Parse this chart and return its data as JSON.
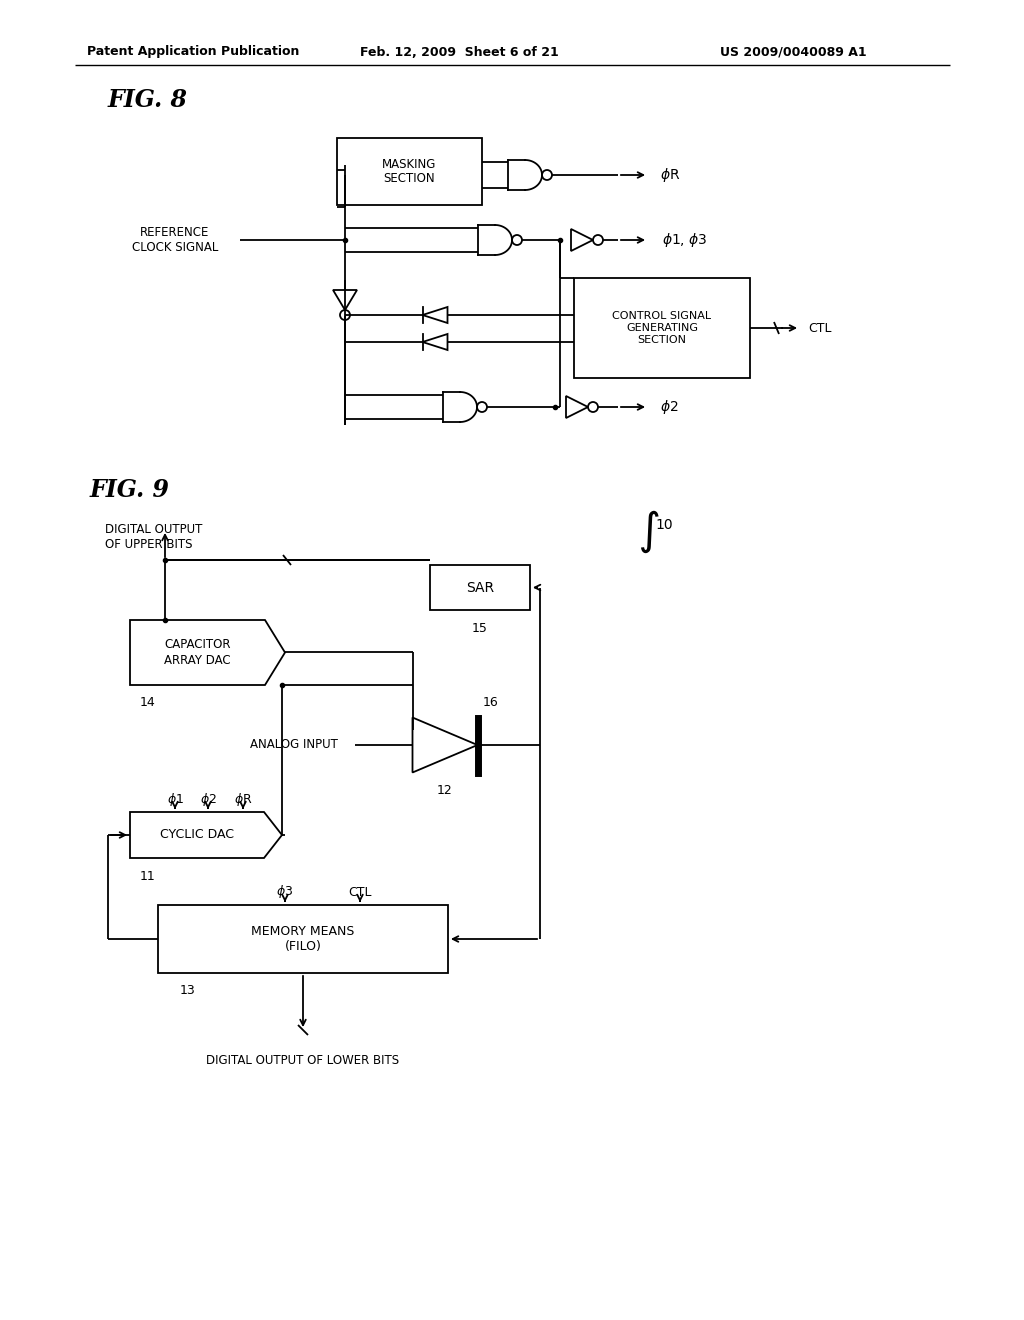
{
  "bg_color": "#ffffff",
  "header_left": "Patent Application Publication",
  "header_center": "Feb. 12, 2009  Sheet 6 of 21",
  "header_right": "US 2009/0040089 A1",
  "fig8_label": "FIG. 8",
  "fig9_label": "FIG. 9",
  "line_color": "#000000",
  "text_color": "#000000"
}
